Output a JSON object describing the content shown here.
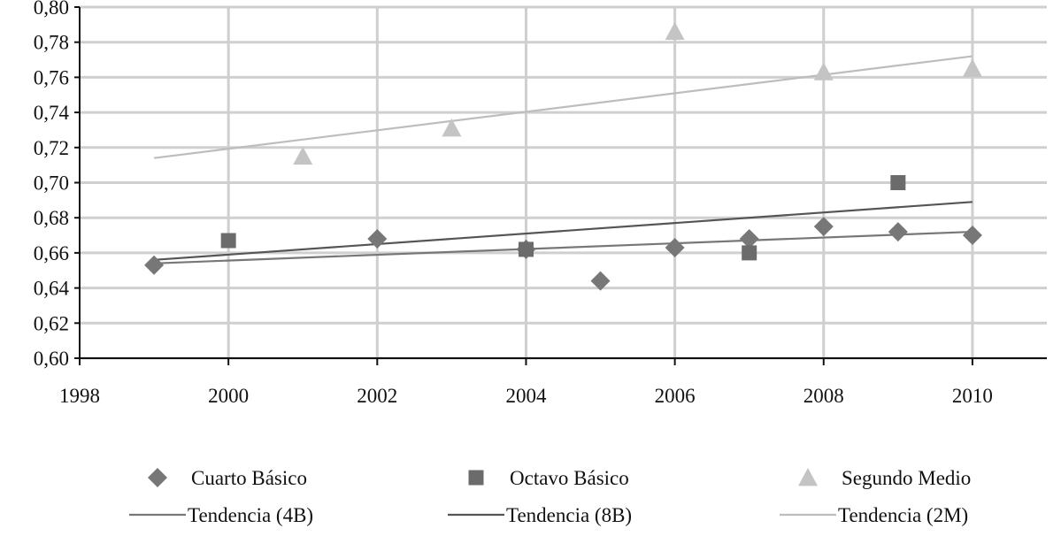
{
  "chart_data": {
    "type": "scatter",
    "title": "",
    "xlabel": "",
    "ylabel": "",
    "xlim": [
      1998,
      2011
    ],
    "ylim": [
      0.6,
      0.8
    ],
    "x_ticks": [
      1998,
      2000,
      2002,
      2004,
      2006,
      2008,
      2010
    ],
    "x_tick_labels": [
      "1998",
      "2000",
      "2002",
      "2004",
      "2006",
      "2008",
      "2010"
    ],
    "y_ticks": [
      0.6,
      0.62,
      0.64,
      0.66,
      0.68,
      0.7,
      0.72,
      0.74,
      0.76,
      0.78,
      0.8
    ],
    "y_tick_labels": [
      "0,60",
      "0,62",
      "0,64",
      "0,66",
      "0,68",
      "0,70",
      "0,72",
      "0,74",
      "0,76",
      "0,78",
      "0,80"
    ],
    "grid": true,
    "legend_position": "bottom",
    "series": [
      {
        "name": "Cuarto Básico",
        "marker": "diamond",
        "color": "#777777",
        "x": [
          1999,
          2002,
          2004,
          2005,
          2006,
          2007,
          2008,
          2009,
          2010
        ],
        "y": [
          0.653,
          0.668,
          0.662,
          0.644,
          0.663,
          0.668,
          0.675,
          0.672,
          0.67
        ]
      },
      {
        "name": "Octavo Básico",
        "marker": "square",
        "color": "#6b6b6b",
        "x": [
          2000,
          2004,
          2007,
          2009
        ],
        "y": [
          0.667,
          0.662,
          0.66,
          0.7
        ]
      },
      {
        "name": "Segundo Medio",
        "marker": "triangle",
        "color": "#c4c4c4",
        "x": [
          2001,
          2003,
          2006,
          2008,
          2010
        ],
        "y": [
          0.715,
          0.731,
          0.786,
          0.763,
          0.765
        ]
      }
    ],
    "trendlines": [
      {
        "name": "Tendencia (4B)",
        "color": "#777777",
        "x": [
          1999,
          2010
        ],
        "y": [
          0.654,
          0.672
        ]
      },
      {
        "name": "Tendencia (8B)",
        "color": "#555555",
        "x": [
          1999,
          2010
        ],
        "y": [
          0.656,
          0.689
        ]
      },
      {
        "name": "Tendencia (2M)",
        "color": "#bdbdbd",
        "x": [
          1999,
          2010
        ],
        "y": [
          0.714,
          0.772
        ]
      }
    ],
    "legend": {
      "entries": [
        {
          "label": "Cuarto Básico",
          "symbol": "diamond",
          "color": "#777777"
        },
        {
          "label": "Octavo Básico",
          "symbol": "square",
          "color": "#6b6b6b"
        },
        {
          "label": "Segundo Medio",
          "symbol": "triangle",
          "color": "#c4c4c4"
        },
        {
          "label": "Tendencia (4B)",
          "symbol": "line",
          "color": "#777777"
        },
        {
          "label": "Tendencia (8B)",
          "symbol": "line",
          "color": "#555555"
        },
        {
          "label": "Tendencia (2M)",
          "symbol": "line",
          "color": "#bdbdbd"
        }
      ]
    }
  }
}
